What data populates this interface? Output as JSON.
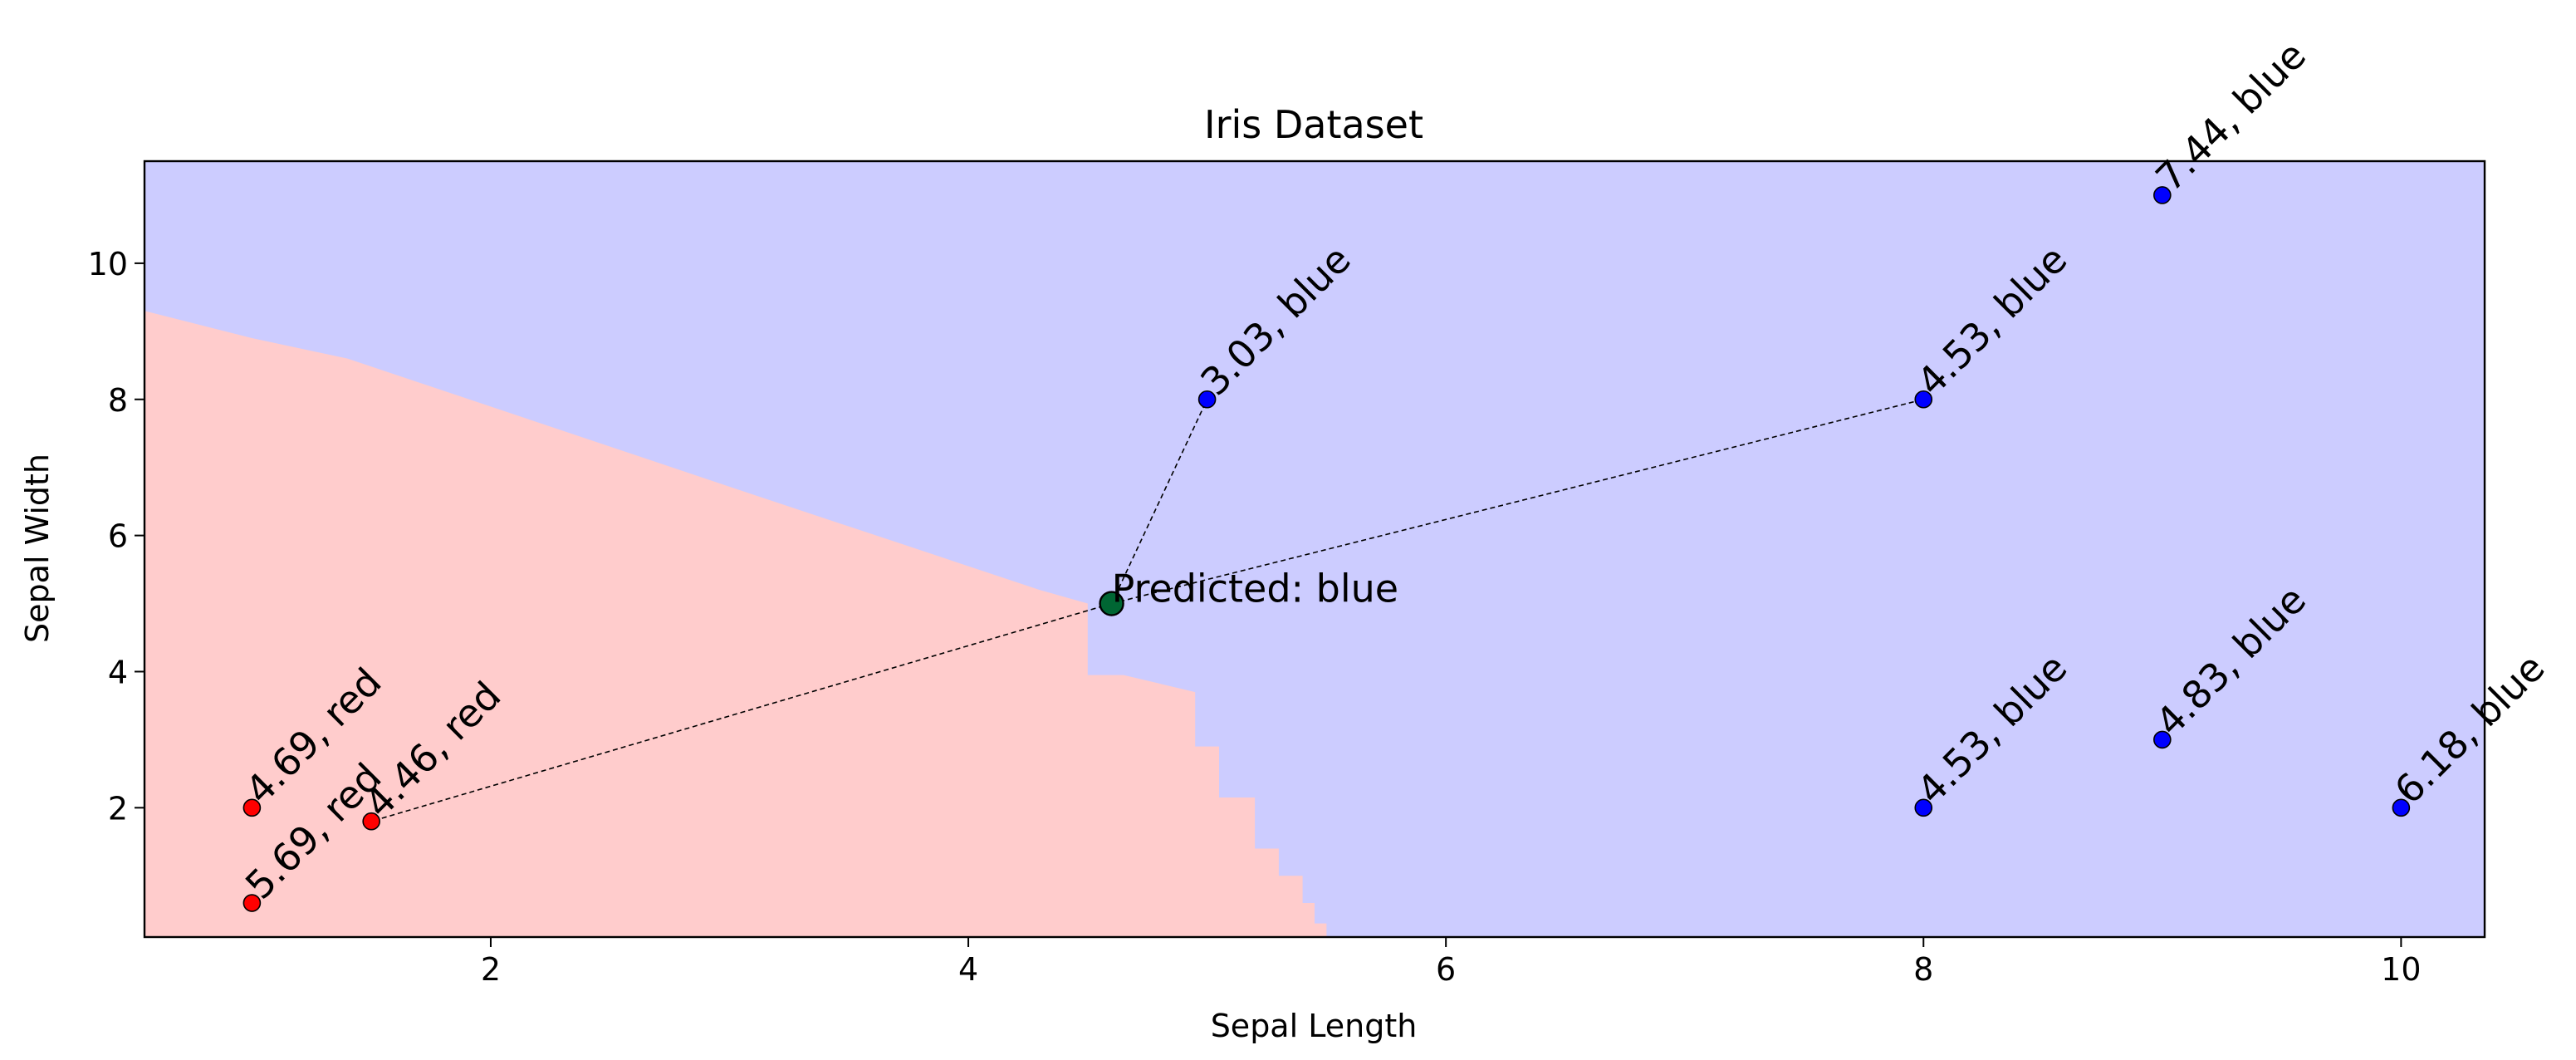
{
  "chart_data": {
    "type": "scatter",
    "title": "Iris Dataset",
    "xlabel": "Sepal Length",
    "ylabel": "Sepal Width",
    "xlim": [
      0.55,
      10.35
    ],
    "ylim": [
      0.1,
      11.5
    ],
    "xticks": [
      2,
      4,
      6,
      8,
      10
    ],
    "yticks": [
      2,
      4,
      6,
      8,
      10
    ],
    "grid": false,
    "colors": {
      "red_region": "#ffcccc",
      "blue_region": "#ccccff",
      "red_point": "#ff0000",
      "blue_point": "#0000ff",
      "predicted_point": "#006633"
    },
    "points": [
      {
        "x": 1.0,
        "y": 0.6,
        "class": "red",
        "label": "5.69, red"
      },
      {
        "x": 1.0,
        "y": 2.0,
        "class": "red",
        "label": "4.69, red"
      },
      {
        "x": 1.5,
        "y": 1.8,
        "class": "red",
        "label": "4.46, red"
      },
      {
        "x": 5.0,
        "y": 8.0,
        "class": "blue",
        "label": "3.03, blue"
      },
      {
        "x": 8.0,
        "y": 8.0,
        "class": "blue",
        "label": "4.53, blue"
      },
      {
        "x": 8.0,
        "y": 2.0,
        "class": "blue",
        "label": "4.53, blue"
      },
      {
        "x": 9.0,
        "y": 11.0,
        "class": "blue",
        "label": "7.44, blue"
      },
      {
        "x": 9.0,
        "y": 3.0,
        "class": "blue",
        "label": "4.83, blue"
      },
      {
        "x": 10.0,
        "y": 2.0,
        "class": "blue",
        "label": "6.18, blue"
      }
    ],
    "predicted": {
      "x": 4.6,
      "y": 5.0,
      "label": "Predicted: blue",
      "class": "blue"
    },
    "neighbor_lines": [
      {
        "x": 5.0,
        "y": 8.0
      },
      {
        "x": 8.0,
        "y": 8.0
      },
      {
        "x": 1.5,
        "y": 1.8
      }
    ],
    "decision_boundary": [
      [
        0.55,
        9.3
      ],
      [
        1.0,
        8.9
      ],
      [
        1.4,
        8.6
      ],
      [
        3.1,
        6.6
      ],
      [
        3.7,
        5.9
      ],
      [
        4.3,
        5.2
      ],
      [
        4.5,
        5.0
      ],
      [
        4.5,
        3.95
      ],
      [
        4.65,
        3.95
      ],
      [
        4.95,
        3.7
      ],
      [
        4.95,
        2.9
      ],
      [
        5.05,
        2.9
      ],
      [
        5.05,
        2.15
      ],
      [
        5.2,
        2.15
      ],
      [
        5.2,
        1.4
      ],
      [
        5.3,
        1.4
      ],
      [
        5.3,
        1.0
      ],
      [
        5.4,
        1.0
      ],
      [
        5.4,
        0.6
      ],
      [
        5.45,
        0.6
      ],
      [
        5.45,
        0.3
      ],
      [
        5.5,
        0.3
      ],
      [
        5.5,
        0.1
      ]
    ]
  }
}
